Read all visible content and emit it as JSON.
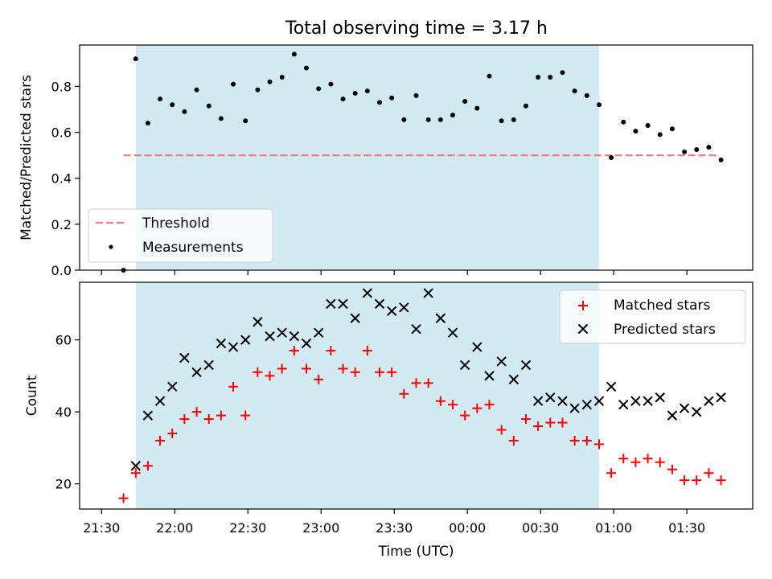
{
  "figure": {
    "title": "Total observing time = 3.17 h"
  },
  "colors": {
    "shade": "#add8e6",
    "threshold": "#f08080",
    "matched": "#ff0000",
    "predicted": "#000000",
    "measurement": "#000000"
  },
  "chart_data": [
    {
      "type": "scatter",
      "title": "Total observing time = 3.17 h",
      "xlabel": "",
      "ylabel": "Matched/Predicted stars",
      "xlim": [
        "21:21",
        "01:57"
      ],
      "ylim": [
        0,
        0.98
      ],
      "yticks": [
        0.0,
        0.2,
        0.4,
        0.6,
        0.8
      ],
      "ytick_labels": [
        "0.0",
        "0.2",
        "0.4",
        "0.6",
        "0.8"
      ],
      "shaded_span": [
        "21:44",
        "00:54"
      ],
      "threshold": {
        "name": "Threshold",
        "y": 0.5,
        "x": [
          "21:39",
          "01:43"
        ]
      },
      "legend": {
        "position": "lower-left",
        "entries": [
          "Threshold",
          "Measurements"
        ]
      },
      "series": [
        {
          "name": "Measurements",
          "x": [
            "21:39",
            "21:44",
            "21:49",
            "21:54",
            "21:59",
            "22:04",
            "22:09",
            "22:14",
            "22:19",
            "22:24",
            "22:29",
            "22:34",
            "22:39",
            "22:44",
            "22:49",
            "22:54",
            "22:59",
            "23:04",
            "23:09",
            "23:14",
            "23:19",
            "23:24",
            "23:29",
            "23:34",
            "23:39",
            "23:44",
            "23:49",
            "23:54",
            "23:59",
            "00:04",
            "00:09",
            "00:14",
            "00:19",
            "00:24",
            "00:29",
            "00:34",
            "00:39",
            "00:44",
            "00:49",
            "00:54",
            "00:59",
            "01:04",
            "01:09",
            "01:14",
            "01:19",
            "01:24",
            "01:29",
            "01:34",
            "01:39",
            "01:44"
          ],
          "y": [
            0.0,
            0.92,
            0.64,
            0.745,
            0.72,
            0.69,
            0.785,
            0.715,
            0.66,
            0.81,
            0.65,
            0.785,
            0.82,
            0.84,
            0.94,
            0.88,
            0.79,
            0.81,
            0.745,
            0.77,
            0.78,
            0.73,
            0.75,
            0.655,
            0.76,
            0.655,
            0.655,
            0.675,
            0.735,
            0.705,
            0.845,
            0.65,
            0.655,
            0.715,
            0.84,
            0.84,
            0.86,
            0.78,
            0.76,
            0.72,
            0.49,
            0.645,
            0.605,
            0.63,
            0.59,
            0.615,
            0.515,
            0.525,
            0.535,
            0.48
          ]
        }
      ]
    },
    {
      "type": "scatter",
      "title": "",
      "xlabel": "Time (UTC)",
      "ylabel": "Count",
      "xlim": [
        "21:21",
        "01:57"
      ],
      "ylim": [
        13,
        76
      ],
      "xticks": [
        "21:30",
        "22:00",
        "22:30",
        "23:00",
        "23:30",
        "00:00",
        "00:30",
        "01:00",
        "01:30"
      ],
      "yticks": [
        20,
        40,
        60
      ],
      "ytick_labels": [
        "20",
        "40",
        "60"
      ],
      "shaded_span": [
        "21:44",
        "00:54"
      ],
      "legend": {
        "position": "top-right",
        "entries": [
          "Matched stars",
          "Predicted stars"
        ]
      },
      "series": [
        {
          "name": "Matched stars",
          "marker": "plus",
          "x": [
            "21:39",
            "21:44",
            "21:49",
            "21:54",
            "21:59",
            "22:04",
            "22:09",
            "22:14",
            "22:19",
            "22:24",
            "22:29",
            "22:34",
            "22:39",
            "22:44",
            "22:49",
            "22:54",
            "22:59",
            "23:04",
            "23:09",
            "23:14",
            "23:19",
            "23:24",
            "23:29",
            "23:34",
            "23:39",
            "23:44",
            "23:49",
            "23:54",
            "23:59",
            "00:04",
            "00:09",
            "00:14",
            "00:19",
            "00:24",
            "00:29",
            "00:34",
            "00:39",
            "00:44",
            "00:49",
            "00:54",
            "00:59",
            "01:04",
            "01:09",
            "01:14",
            "01:19",
            "01:24",
            "01:29",
            "01:34",
            "01:39",
            "01:44"
          ],
          "y": [
            16,
            23,
            25,
            32,
            34,
            38,
            40,
            38,
            39,
            47,
            39,
            51,
            50,
            52,
            57,
            52,
            49,
            57,
            52,
            51,
            57,
            51,
            51,
            45,
            48,
            48,
            43,
            42,
            39,
            41,
            42,
            35,
            32,
            38,
            36,
            37,
            37,
            32,
            32,
            31,
            23,
            27,
            26,
            27,
            26,
            24,
            21,
            21,
            23,
            21
          ]
        },
        {
          "name": "Predicted stars",
          "marker": "x",
          "x": [
            "21:44",
            "21:49",
            "21:54",
            "21:59",
            "22:04",
            "22:09",
            "22:14",
            "22:19",
            "22:24",
            "22:29",
            "22:34",
            "22:39",
            "22:44",
            "22:49",
            "22:54",
            "22:59",
            "23:04",
            "23:09",
            "23:14",
            "23:19",
            "23:24",
            "23:29",
            "23:34",
            "23:39",
            "23:44",
            "23:49",
            "23:54",
            "23:59",
            "00:04",
            "00:09",
            "00:14",
            "00:19",
            "00:24",
            "00:29",
            "00:34",
            "00:39",
            "00:44",
            "00:49",
            "00:54",
            "00:59",
            "01:04",
            "01:09",
            "01:14",
            "01:19",
            "01:24",
            "01:29",
            "01:34",
            "01:39",
            "01:44"
          ],
          "y": [
            25,
            39,
            43,
            47,
            55,
            51,
            53,
            59,
            58,
            60,
            65,
            61,
            62,
            61,
            59,
            62,
            70,
            70,
            66,
            73,
            70,
            68,
            69,
            63,
            73,
            66,
            62,
            53,
            58,
            50,
            54,
            49,
            53,
            43,
            44,
            43,
            41,
            42,
            43,
            47,
            42,
            43,
            43,
            44,
            39,
            41,
            40,
            43,
            44
          ]
        }
      ]
    }
  ]
}
